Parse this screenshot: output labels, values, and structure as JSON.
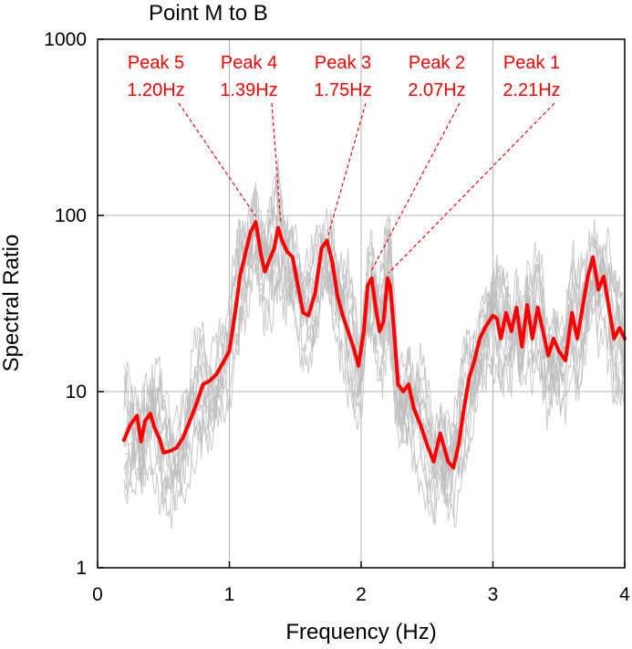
{
  "chart_data": {
    "type": "line",
    "title": "Point M to B",
    "xlabel": "Frequency (Hz)",
    "ylabel": "Spectral Ratio",
    "xlim": [
      0,
      4
    ],
    "ylim": [
      1,
      1000
    ],
    "yscale": "log",
    "x_ticks": [
      0,
      1,
      2,
      3,
      4
    ],
    "x_tick_labels": [
      "0",
      "1",
      "2",
      "3",
      "4"
    ],
    "y_ticks": [
      1,
      10,
      100,
      1000
    ],
    "y_tick_labels": [
      "1",
      "10",
      "100",
      "1000"
    ],
    "grid": true,
    "colors": {
      "mean": "#ff0000",
      "individual": "#bdbdbd",
      "grid": "#b4b4b4"
    },
    "series": [
      {
        "role": "mean",
        "x": [
          0.2,
          0.25,
          0.3,
          0.33,
          0.36,
          0.4,
          0.43,
          0.47,
          0.5,
          0.55,
          0.6,
          0.65,
          0.7,
          0.75,
          0.8,
          0.85,
          0.9,
          0.95,
          1.0,
          1.05,
          1.08,
          1.12,
          1.16,
          1.2,
          1.24,
          1.27,
          1.3,
          1.34,
          1.37,
          1.4,
          1.44,
          1.48,
          1.52,
          1.56,
          1.6,
          1.65,
          1.7,
          1.74,
          1.78,
          1.82,
          1.86,
          1.9,
          1.94,
          1.98,
          2.02,
          2.05,
          2.08,
          2.11,
          2.14,
          2.17,
          2.2,
          2.22,
          2.25,
          2.28,
          2.32,
          2.36,
          2.4,
          2.45,
          2.5,
          2.55,
          2.6,
          2.63,
          2.66,
          2.7,
          2.74,
          2.78,
          2.82,
          2.86,
          2.9,
          2.94,
          2.97,
          3.0,
          3.03,
          3.06,
          3.1,
          3.14,
          3.18,
          3.22,
          3.26,
          3.3,
          3.34,
          3.38,
          3.42,
          3.46,
          3.5,
          3.55,
          3.6,
          3.64,
          3.68,
          3.72,
          3.76,
          3.8,
          3.84,
          3.88,
          3.92,
          3.96,
          4.0
        ],
        "y": [
          5.3,
          6.5,
          7.3,
          5.2,
          6.8,
          7.5,
          6.3,
          5.4,
          4.5,
          4.6,
          4.8,
          5.5,
          6.8,
          8.5,
          11.0,
          11.5,
          12.5,
          14.5,
          17.0,
          30.0,
          45.0,
          60.0,
          80.0,
          92.0,
          60.0,
          48.0,
          55.0,
          65.0,
          85.0,
          72.0,
          62.0,
          58.0,
          40.0,
          28.0,
          27.0,
          36.0,
          65.0,
          72.0,
          55.0,
          35.0,
          27.0,
          22.0,
          18.0,
          14.0,
          22.0,
          40.0,
          44.0,
          30.0,
          22.0,
          25.0,
          44.0,
          40.0,
          22.0,
          11.0,
          10.0,
          11.0,
          8.0,
          6.5,
          5.0,
          4.0,
          5.8,
          4.8,
          4.0,
          3.7,
          5.0,
          8.0,
          12.0,
          15.0,
          20.0,
          23.0,
          25.0,
          27.0,
          26.0,
          20.0,
          28.0,
          22.0,
          30.0,
          18.0,
          31.0,
          20.0,
          30.0,
          22.0,
          16.0,
          20.0,
          17.0,
          15.0,
          28.0,
          20.0,
          30.0,
          45.0,
          58.0,
          38.0,
          45.0,
          30.0,
          20.0,
          23.0,
          20.0
        ]
      }
    ],
    "individual_curve_count": 12,
    "annotations": [
      {
        "line1": "Peak 5",
        "line2": "1.20Hz",
        "x": 1.2,
        "y": 92
      },
      {
        "line1": "Peak 4",
        "line2": "1.39Hz",
        "x": 1.39,
        "y": 85
      },
      {
        "line1": "Peak 3",
        "line2": "1.75Hz",
        "x": 1.75,
        "y": 72
      },
      {
        "line1": "Peak 2",
        "line2": "2.07Hz",
        "x": 2.07,
        "y": 44
      },
      {
        "line1": "Peak 1",
        "line2": "2.21Hz",
        "x": 2.21,
        "y": 44
      }
    ]
  }
}
